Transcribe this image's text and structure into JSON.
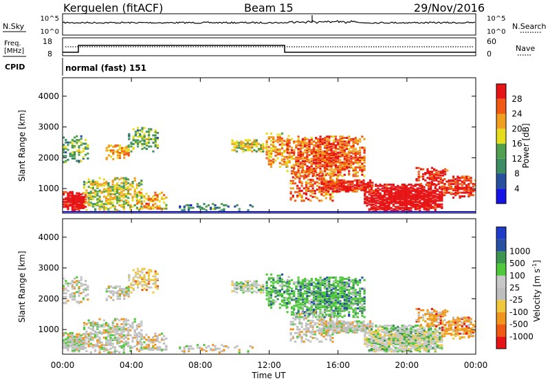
{
  "header": {
    "station": "Kerguelen (fitACF)",
    "beam": "Beam 15",
    "date": "29/Nov/2016"
  },
  "top_panels": {
    "nsky_label": "N.Sky",
    "nsearch_label": "N.Search",
    "noise_ticks_left": [
      "10^5",
      "10^0"
    ],
    "noise_ticks_right": [
      "10^5",
      "10^0"
    ],
    "freq_label_line1": "Freq.",
    "freq_label_line2": "[MHz]",
    "freq_ticks": [
      "18",
      "8"
    ],
    "nave_label": "Nave",
    "nave_ticks": [
      "60",
      "0"
    ],
    "cpid_label": "CPID",
    "cpid_text": "normal (fast) 151"
  },
  "colors": {
    "power": [
      "#1414e6",
      "#2850a0",
      "#3c8c64",
      "#50a050",
      "#e6dc1e",
      "#f0a01e",
      "#f05a14",
      "#e61414"
    ],
    "velocity": [
      "#e61414",
      "#f05a14",
      "#f0961e",
      "#f0c83c",
      "#bebebe",
      "#c8c8c8",
      "#50c83c",
      "#3c9650",
      "#2850a0",
      "#1e3cc8"
    ]
  },
  "chart_data": [
    {
      "type": "heatmap",
      "panel": "power",
      "ylabel": "Slant Range [km]",
      "yticks": [
        "1000",
        "2000",
        "3000",
        "4000"
      ],
      "ylim": [
        200,
        4600
      ],
      "xlim": [
        0,
        24
      ],
      "colorbar_label": "Power [dB]",
      "colorbar_ticks": [
        "4",
        "8",
        "12",
        "16",
        "20",
        "24",
        "28"
      ],
      "colorbar_range": [
        0,
        32
      ]
    },
    {
      "type": "heatmap",
      "panel": "velocity",
      "ylabel": "Slant Range [km]",
      "yticks": [
        "1000",
        "2000",
        "3000",
        "4000"
      ],
      "ylim": [
        200,
        4600
      ],
      "xlim": [
        0,
        24
      ],
      "colorbar_label": "Velocity [m s",
      "colorbar_label_sup": "-1",
      "colorbar_label_end": "]",
      "colorbar_ticks": [
        "-1000",
        "-500",
        "-100",
        "-25",
        "25",
        "100",
        "500",
        "1000"
      ]
    }
  ],
  "xaxis": {
    "ticks": [
      "00:00",
      "04:00",
      "08:00",
      "12:00",
      "16:00",
      "20:00",
      "00:00"
    ],
    "label": "Time UT"
  }
}
